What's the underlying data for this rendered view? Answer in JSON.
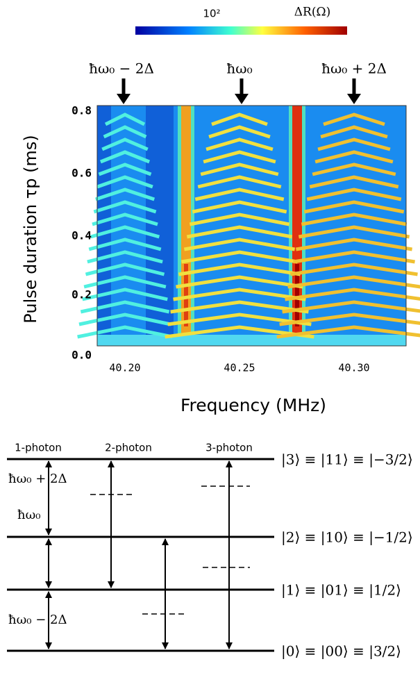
{
  "figure": {
    "colorbar": {
      "scale_label": "10²",
      "quantity": "ΔR(Ω)"
    },
    "peaks": [
      "ħω₀ − 2Δ",
      "ħω₀",
      "ħω₀ + 2Δ"
    ],
    "y_axis": {
      "title": "Pulse duration τp (ms)",
      "ticks": [
        "0.8",
        "0.6",
        "0.4",
        "0.2",
        "0.0"
      ]
    },
    "x_axis": {
      "title": "Frequency (MHz)",
      "ticks": [
        "40.20",
        "40.25",
        "40.30"
      ]
    }
  },
  "diagram": {
    "transitions": [
      "1-photon",
      "2-photon",
      "3-photon"
    ],
    "gaps": [
      "ħω₀ + 2Δ",
      "ħω₀",
      "ħω₀ − 2Δ"
    ],
    "levels": [
      "|3⟩ ≡ |11⟩ ≡ |−3/2⟩",
      "|2⟩ ≡ |10⟩ ≡ |−1/2⟩",
      "|1⟩ ≡ |01⟩ ≡ |1/2⟩",
      "|0⟩ ≡ |00⟩ ≡ |3/2⟩"
    ]
  }
}
